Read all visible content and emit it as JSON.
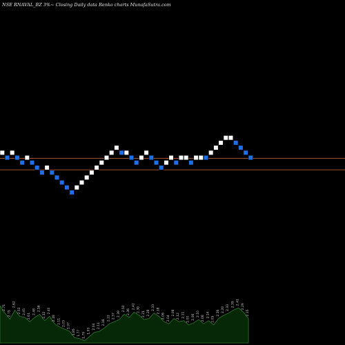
{
  "header": {
    "title": "NSE RNAVAL_BZ 3%~  Closing Daily data  Renko  charts MunafaSutra.com"
  },
  "colors": {
    "background": "#000000",
    "up_brick": "#ffffff",
    "down_brick": "#1e6fe8",
    "brick_edge": "#000000",
    "reference_line": "#a0522d",
    "volume_fill": "#062806",
    "volume_line": "#2d7a2d",
    "volume_label": "#c8c8c8"
  },
  "chart_data": {
    "type": "renko",
    "title": "NSE RNAVAL_BZ 3%~  Closing Daily data  Renko  charts MunafaSutra.com",
    "brick_size": "3%",
    "bricks": [
      {
        "direction": "up",
        "level": 0
      },
      {
        "direction": "down",
        "level": -1
      },
      {
        "direction": "up",
        "level": 0
      },
      {
        "direction": "down",
        "level": -1
      },
      {
        "direction": "down",
        "level": -2
      },
      {
        "direction": "up",
        "level": -1
      },
      {
        "direction": "down",
        "level": -2
      },
      {
        "direction": "down",
        "level": -3
      },
      {
        "direction": "down",
        "level": -4
      },
      {
        "direction": "up",
        "level": -3
      },
      {
        "direction": "down",
        "level": -4
      },
      {
        "direction": "down",
        "level": -5
      },
      {
        "direction": "down",
        "level": -6
      },
      {
        "direction": "down",
        "level": -7
      },
      {
        "direction": "down",
        "level": -8
      },
      {
        "direction": "up",
        "level": -7
      },
      {
        "direction": "up",
        "level": -6
      },
      {
        "direction": "up",
        "level": -5
      },
      {
        "direction": "up",
        "level": -4
      },
      {
        "direction": "up",
        "level": -3
      },
      {
        "direction": "up",
        "level": -2
      },
      {
        "direction": "up",
        "level": -1
      },
      {
        "direction": "up",
        "level": 0
      },
      {
        "direction": "up",
        "level": 1
      },
      {
        "direction": "down",
        "level": 0
      },
      {
        "direction": "up",
        "level": 0
      },
      {
        "direction": "down",
        "level": -1
      },
      {
        "direction": "down",
        "level": -2
      },
      {
        "direction": "up",
        "level": -1
      },
      {
        "direction": "up",
        "level": 0
      },
      {
        "direction": "down",
        "level": -1
      },
      {
        "direction": "down",
        "level": -2
      },
      {
        "direction": "down",
        "level": -3
      },
      {
        "direction": "up",
        "level": -2
      },
      {
        "direction": "up",
        "level": -1
      },
      {
        "direction": "down",
        "level": -2
      },
      {
        "direction": "up",
        "level": -1
      },
      {
        "direction": "up",
        "level": -1
      },
      {
        "direction": "down",
        "level": -2
      },
      {
        "direction": "up",
        "level": -1
      },
      {
        "direction": "up",
        "level": -1
      },
      {
        "direction": "down",
        "level": -1
      },
      {
        "direction": "up",
        "level": 0
      },
      {
        "direction": "up",
        "level": 1
      },
      {
        "direction": "up",
        "level": 2
      },
      {
        "direction": "up",
        "level": 3
      },
      {
        "direction": "up",
        "level": 3
      },
      {
        "direction": "down",
        "level": 2
      },
      {
        "direction": "down",
        "level": 1
      },
      {
        "direction": "down",
        "level": 0
      },
      {
        "direction": "down",
        "level": -1
      }
    ],
    "reference_lines": [
      {
        "level": -1.1
      },
      {
        "level": -3.4
      }
    ],
    "lower_panel": {
      "type": "area",
      "values": [
        0.7,
        0.56,
        0.45,
        0.62,
        0.5,
        0.48,
        0.4,
        0.48,
        0.54,
        0.42,
        0.5,
        0.36,
        0.3,
        0.26,
        0.22,
        0.1,
        0.08,
        0.04,
        0.12,
        0.2,
        0.22,
        0.28,
        0.36,
        0.4,
        0.44,
        0.54,
        0.48,
        0.58,
        0.52,
        0.44,
        0.46,
        0.56,
        0.5,
        0.4,
        0.36,
        0.46,
        0.4,
        0.42,
        0.34,
        0.38,
        0.44,
        0.36,
        0.42,
        0.34,
        0.46,
        0.52,
        0.56,
        0.62,
        0.66,
        0.58,
        0.46
      ],
      "labels": [
        "2.79",
        "2.71",
        "2.75",
        "2.62",
        "2.53",
        "2.45",
        "2.61",
        "2.48",
        "2.56",
        "2.32",
        "2.40",
        "2.18",
        "2.11",
        "2.03",
        "1.97",
        "1.85",
        "1.77",
        "1.79",
        "1.93",
        "2.04",
        "2.11",
        "2.18",
        "2.22",
        "2.37",
        "2.39",
        "2.50",
        "2.36",
        "2.42",
        "2.30",
        "2.21",
        "2.28",
        "2.33",
        "2.18",
        "2.06",
        "2.04",
        "2.08",
        "2.12",
        "2.11",
        "2.00",
        "2.06",
        "2.10",
        "2.08",
        "2.14",
        "2.05",
        "2.16",
        "2.20",
        "2.33",
        "2.39",
        "2.41",
        "2.29",
        "2.15"
      ]
    }
  }
}
